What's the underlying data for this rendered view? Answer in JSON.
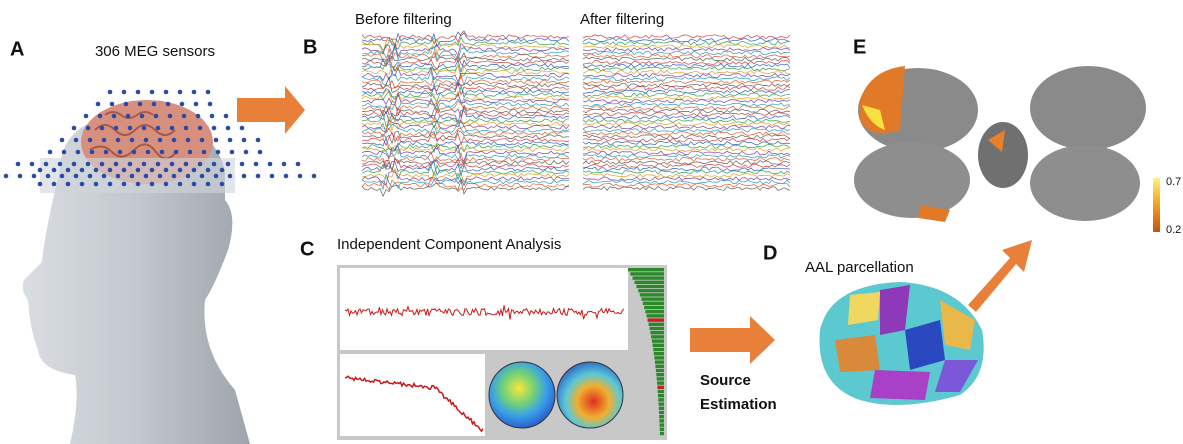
{
  "panel_a": {
    "label": "A",
    "title": "306 MEG sensors"
  },
  "panel_b": {
    "label": "B",
    "before": "Before filtering",
    "after": "After filtering"
  },
  "panel_c": {
    "label": "C",
    "title": "Independent Component Analysis"
  },
  "source_arrow": {
    "line1": "Source",
    "line2": "Estimation"
  },
  "panel_d": {
    "label": "D",
    "title": "AAL parcellation"
  },
  "panel_e": {
    "label": "E",
    "colorbar": {
      "max": 0.7,
      "min": 0.2
    }
  }
}
